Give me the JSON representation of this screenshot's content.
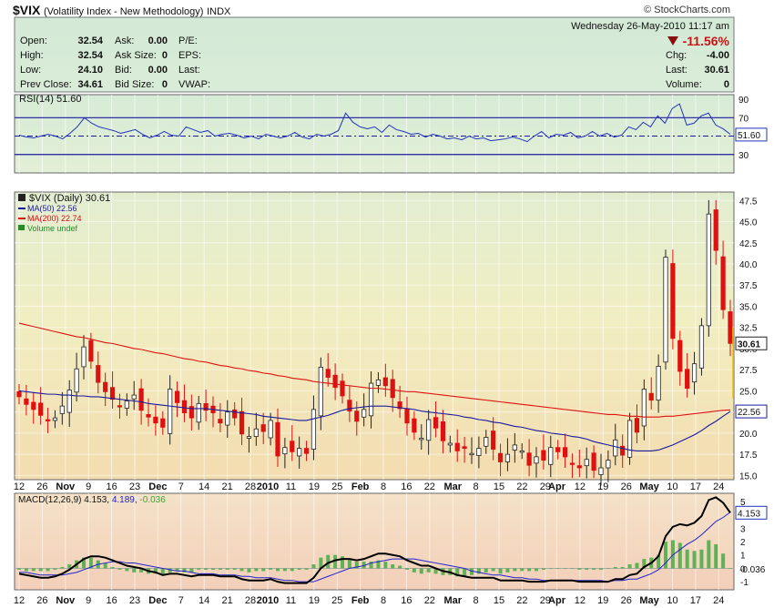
{
  "header": {
    "symbol": "$VIX",
    "name": "(Volatility Index - New Methodology)",
    "exchange": "INDX",
    "brand": "© StockCharts.com",
    "datetime": "Wednesday  26-May-2010  11:17 am",
    "change_pct": "-11.56%"
  },
  "quote": {
    "col1": [
      [
        "Open:",
        "32.54"
      ],
      [
        "High:",
        "32.54"
      ],
      [
        "Low:",
        "24.10"
      ],
      [
        "Prev Close:",
        "34.61"
      ]
    ],
    "col2": [
      [
        "Ask:",
        "0.00"
      ],
      [
        "Ask Size:",
        "0"
      ],
      [
        "Bid:",
        "0.00"
      ],
      [
        "Bid Size:",
        "0"
      ]
    ],
    "col3": [
      "P/E:",
      "EPS:",
      "Last:",
      "VWAP:"
    ],
    "col4": [
      [
        "Chg:",
        "-4.00"
      ],
      [
        "Last:",
        "30.61"
      ],
      [
        "Volume:",
        "0"
      ]
    ]
  },
  "colors": {
    "up": "#33aa33",
    "down": "#dd1111",
    "ma50": "#1a1aa0",
    "ma200": "#dd1111",
    "rsi": "#2233bb",
    "macd": "#000000",
    "signal": "#2222cc",
    "hist": "#44aa44"
  },
  "chart_data": [
    {
      "type": "line",
      "panel": "rsi",
      "legend": "RSI(14) 51.60",
      "last_label": "51.60",
      "yticks": [
        90,
        70,
        50,
        30
      ],
      "ylim": [
        10,
        95
      ],
      "guide_lines": [
        70,
        30
      ],
      "values": [
        51,
        49,
        48,
        50,
        52,
        50,
        47,
        53,
        60,
        70,
        64,
        60,
        58,
        56,
        53,
        55,
        57,
        52,
        48,
        51,
        55,
        51,
        50,
        60,
        57,
        54,
        56,
        50,
        52,
        53,
        51,
        48,
        50,
        47,
        52,
        50,
        48,
        50,
        54,
        49,
        47,
        52,
        50,
        52,
        56,
        75,
        65,
        60,
        58,
        60,
        54,
        62,
        57,
        55,
        52,
        53,
        49,
        52,
        50,
        47,
        48,
        46,
        50,
        47,
        48,
        45,
        46,
        47,
        49,
        47,
        44,
        50,
        55,
        48,
        52,
        51,
        54,
        48,
        50,
        55,
        50,
        53,
        49,
        51,
        60,
        57,
        65,
        60,
        72,
        64,
        80,
        85,
        62,
        64,
        72,
        75,
        62,
        58,
        52
      ]
    },
    {
      "type": "candlestick",
      "panel": "price",
      "legend": [
        "$VIX (Daily) 30.61",
        "MA(50) 22.56",
        "MA(200) 22.74",
        "Volume undef"
      ],
      "last_label": "30.61",
      "ma50_label": "22.56",
      "yticks": [
        47.5,
        45.0,
        42.5,
        40.0,
        37.5,
        35.0,
        32.5,
        30.0,
        27.5,
        25.0,
        22.5,
        20.0,
        17.5,
        15.0
      ],
      "ylim": [
        14.5,
        48.5
      ],
      "closes": [
        24.3,
        23.4,
        22.8,
        22.1,
        21.5,
        21.8,
        23.2,
        25.1,
        27.6,
        30.2,
        28.5,
        26.0,
        24.9,
        24.0,
        23.2,
        23.8,
        24.5,
        22.7,
        21.9,
        21.2,
        20.7,
        25.2,
        23.6,
        22.4,
        21.8,
        23.5,
        22.7,
        22.4,
        21.2,
        22.5,
        21.8,
        19.9,
        19.6,
        20.5,
        20.2,
        21.5,
        17.3,
        18.3,
        17.8,
        18.2,
        17.6,
        22.8,
        27.8,
        26.6,
        25.4,
        24.4,
        22.6,
        21.4,
        22.8,
        25.9,
        26.3,
        25.6,
        24.2,
        22.9,
        21.2,
        20.1,
        19.4,
        21.6,
        20.6,
        19.1,
        18.8,
        17.9,
        18.2,
        17.6,
        18.2,
        19.5,
        18.1,
        16.6,
        17.5,
        18.6,
        17.9,
        16.2,
        17.2,
        16.8,
        18.3,
        17.8,
        17.2,
        16.4,
        15.9,
        16.9,
        15.6,
        15.9,
        16.8,
        19.2,
        17.4,
        21.5,
        20.1,
        25.2,
        23.9,
        27.9,
        40.8,
        31.2,
        27.3,
        25.3,
        28.2,
        32.7,
        45.9,
        41.6,
        34.6,
        30.61
      ],
      "ma50": [
        25.0,
        24.9,
        24.8,
        24.7,
        24.6,
        24.6,
        24.5,
        24.5,
        24.4,
        24.4,
        24.3,
        24.3,
        24.2,
        24.1,
        24.0,
        23.9,
        23.8,
        23.7,
        23.5,
        23.4,
        23.3,
        23.2,
        23.1,
        23.0,
        22.9,
        22.9,
        22.9,
        22.8,
        22.7,
        22.6,
        22.5,
        22.4,
        22.3,
        22.2,
        22.0,
        21.9,
        21.8,
        21.7,
        21.6,
        21.5,
        21.5,
        21.7,
        21.9,
        22.1,
        22.4,
        22.7,
        22.9,
        23.0,
        23.1,
        23.2,
        23.2,
        23.2,
        23.1,
        23.0,
        22.9,
        22.8,
        22.6,
        22.5,
        22.4,
        22.3,
        22.2,
        22.1,
        21.9,
        21.8,
        21.6,
        21.5,
        21.3,
        21.2,
        21.0,
        20.8,
        20.7,
        20.5,
        20.3,
        20.2,
        20.0,
        19.9,
        19.8,
        19.6,
        19.5,
        19.3,
        19.0,
        18.8,
        18.6,
        18.4,
        18.2,
        18.0,
        17.9,
        17.9,
        17.9,
        18.0,
        18.3,
        18.6,
        19.0,
        19.4,
        19.8,
        20.3,
        20.9,
        21.4,
        22.0,
        22.56
      ],
      "ma200": [
        33.0,
        32.8,
        32.6,
        32.4,
        32.2,
        32.0,
        31.8,
        31.6,
        31.4,
        31.3,
        31.1,
        30.9,
        30.7,
        30.6,
        30.4,
        30.2,
        30.0,
        29.9,
        29.7,
        29.5,
        29.4,
        29.2,
        29.0,
        28.8,
        28.7,
        28.5,
        28.4,
        28.2,
        28.0,
        27.9,
        27.7,
        27.6,
        27.4,
        27.3,
        27.1,
        27.0,
        26.8,
        26.7,
        26.5,
        26.4,
        26.3,
        26.1,
        26.0,
        25.9,
        25.8,
        25.7,
        25.6,
        25.5,
        25.4,
        25.3,
        25.3,
        25.2,
        25.1,
        25.0,
        24.9,
        24.9,
        24.8,
        24.7,
        24.6,
        24.5,
        24.4,
        24.3,
        24.2,
        24.1,
        24.0,
        23.9,
        23.8,
        23.7,
        23.6,
        23.5,
        23.4,
        23.3,
        23.2,
        23.1,
        23.0,
        22.9,
        22.8,
        22.7,
        22.6,
        22.5,
        22.4,
        22.3,
        22.2,
        22.2,
        22.1,
        22.0,
        22.0,
        21.9,
        21.9,
        21.9,
        22.0,
        22.0,
        22.1,
        22.2,
        22.3,
        22.4,
        22.5,
        22.6,
        22.7,
        22.74
      ]
    },
    {
      "type": "line",
      "panel": "macd",
      "legend": [
        "MACD(12,26,9) 4.153,",
        "4.189,",
        "-0.036"
      ],
      "macd_label": "4.153",
      "hist_label": "-0.036",
      "yticks": [
        5,
        4,
        3,
        2,
        1,
        0,
        -1
      ],
      "ylim": [
        -1.6,
        5.6
      ],
      "macd": [
        -0.4,
        -0.5,
        -0.6,
        -0.7,
        -0.7,
        -0.6,
        -0.4,
        -0.1,
        0.3,
        0.7,
        0.9,
        0.9,
        0.8,
        0.6,
        0.4,
        0.2,
        0.1,
        0.0,
        -0.2,
        -0.3,
        -0.5,
        -0.4,
        -0.4,
        -0.5,
        -0.6,
        -0.5,
        -0.5,
        -0.5,
        -0.6,
        -0.6,
        -0.6,
        -0.8,
        -0.9,
        -0.9,
        -0.9,
        -0.8,
        -1.0,
        -1.1,
        -1.1,
        -1.1,
        -1.1,
        -0.7,
        0.0,
        0.4,
        0.6,
        0.7,
        0.7,
        0.6,
        0.7,
        0.9,
        1.1,
        1.1,
        1.0,
        0.9,
        0.6,
        0.4,
        0.2,
        0.2,
        0.0,
        -0.2,
        -0.3,
        -0.5,
        -0.6,
        -0.7,
        -0.7,
        -0.7,
        -0.7,
        -0.9,
        -0.9,
        -0.9,
        -0.9,
        -1.0,
        -1.0,
        -1.0,
        -0.9,
        -0.9,
        -0.9,
        -0.9,
        -1.0,
        -1.0,
        -1.0,
        -1.0,
        -1.0,
        -0.8,
        -0.8,
        -0.5,
        -0.4,
        0.1,
        0.4,
        0.9,
        2.4,
        3.1,
        3.3,
        3.2,
        3.4,
        3.9,
        5.1,
        5.3,
        4.9,
        4.153
      ],
      "signal": [
        -0.3,
        -0.3,
        -0.4,
        -0.5,
        -0.5,
        -0.5,
        -0.5,
        -0.4,
        -0.3,
        -0.1,
        0.1,
        0.3,
        0.4,
        0.5,
        0.5,
        0.4,
        0.4,
        0.3,
        0.2,
        0.1,
        0.0,
        -0.1,
        -0.2,
        -0.2,
        -0.3,
        -0.4,
        -0.4,
        -0.4,
        -0.5,
        -0.5,
        -0.5,
        -0.6,
        -0.6,
        -0.7,
        -0.7,
        -0.7,
        -0.8,
        -0.9,
        -0.9,
        -1.0,
        -1.0,
        -1.0,
        -0.8,
        -0.6,
        -0.4,
        -0.2,
        0.0,
        0.1,
        0.2,
        0.4,
        0.5,
        0.6,
        0.7,
        0.7,
        0.7,
        0.7,
        0.6,
        0.5,
        0.4,
        0.3,
        0.2,
        0.1,
        0.0,
        -0.2,
        -0.3,
        -0.4,
        -0.5,
        -0.5,
        -0.6,
        -0.7,
        -0.7,
        -0.8,
        -0.8,
        -0.9,
        -0.9,
        -0.9,
        -0.9,
        -0.9,
        -0.9,
        -0.9,
        -0.9,
        -0.9,
        -1.0,
        -0.9,
        -0.9,
        -0.8,
        -0.8,
        -0.6,
        -0.4,
        -0.1,
        0.4,
        1.0,
        1.4,
        1.8,
        2.1,
        2.5,
        3.0,
        3.5,
        3.8,
        4.189
      ]
    }
  ],
  "x_axis": {
    "labels": [
      {
        "i": 0,
        "t": "12"
      },
      {
        "i": 4,
        "t": "26"
      },
      {
        "i": 8,
        "t": "Nov",
        "bold": true
      },
      {
        "i": 12,
        "t": "9"
      },
      {
        "i": 16,
        "t": "16"
      },
      {
        "i": 20,
        "t": "23"
      },
      {
        "i": 24,
        "t": "Dec",
        "bold": true
      },
      {
        "i": 28,
        "t": "7"
      },
      {
        "i": 32,
        "t": "14"
      },
      {
        "i": 36,
        "t": "21"
      },
      {
        "i": 40,
        "t": "28"
      },
      {
        "i": 43,
        "t": "2010",
        "bold": true
      },
      {
        "i": 47,
        "t": "11"
      },
      {
        "i": 51,
        "t": "19"
      },
      {
        "i": 55,
        "t": "25"
      },
      {
        "i": 59,
        "t": "Feb",
        "bold": true
      },
      {
        "i": 63,
        "t": "8"
      },
      {
        "i": 67,
        "t": "16"
      },
      {
        "i": 71,
        "t": "22"
      },
      {
        "i": 75,
        "t": "Mar",
        "bold": true
      },
      {
        "i": 79,
        "t": "8"
      },
      {
        "i": 83,
        "t": "15"
      },
      {
        "i": 87,
        "t": "22"
      },
      {
        "i": 91,
        "t": "29"
      },
      {
        "i": 93,
        "t": "Apr",
        "bold": true
      },
      {
        "i": 97,
        "t": "12"
      },
      {
        "i": 101,
        "t": "19"
      },
      {
        "i": 105,
        "t": "26"
      },
      {
        "i": 109,
        "t": "May",
        "bold": true
      },
      {
        "i": 113,
        "t": "10"
      },
      {
        "i": 117,
        "t": "17"
      },
      {
        "i": 121,
        "t": "24"
      }
    ],
    "count": 124
  }
}
